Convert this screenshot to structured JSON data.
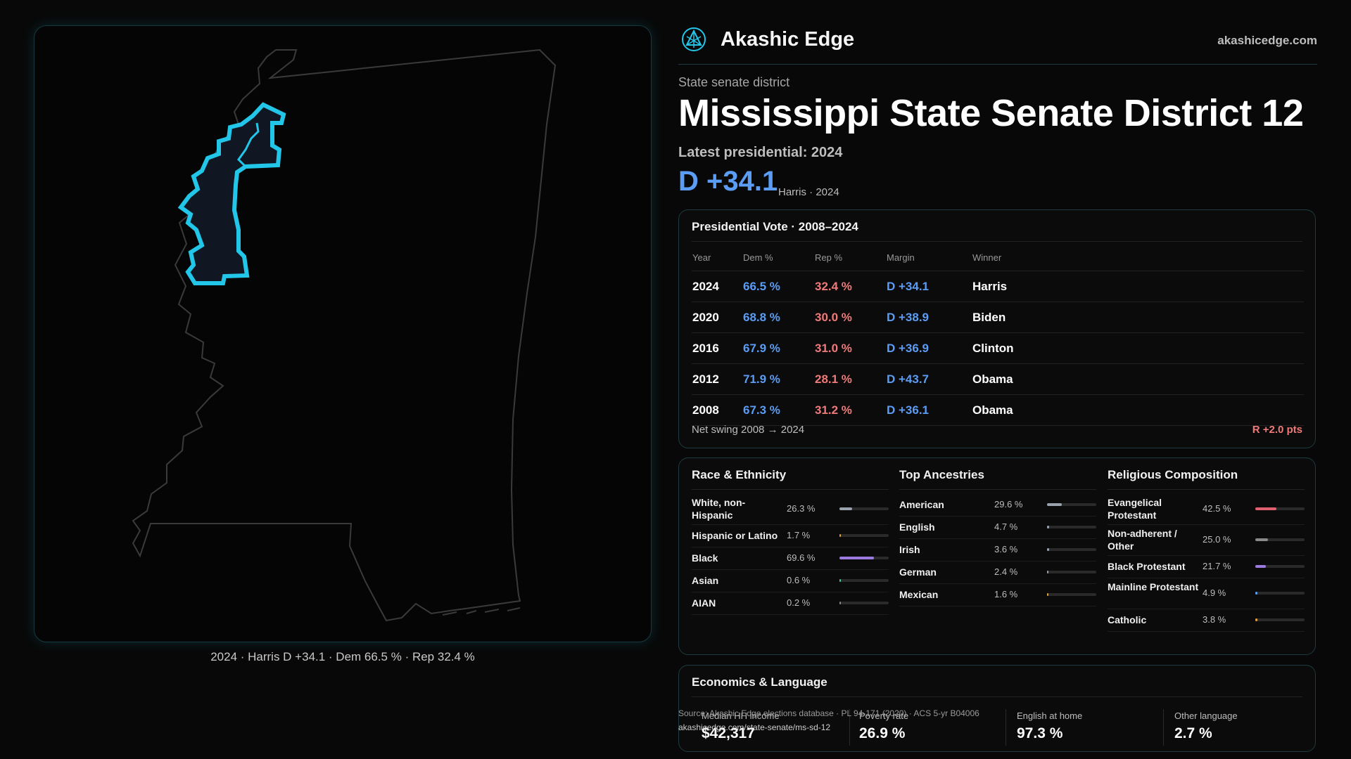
{
  "brand": {
    "name": "Akashic Edge",
    "url": "akashicedge.com",
    "logo_icon": "akashic-edge-logo-icon"
  },
  "header": {
    "kicker": "State senate district",
    "title": "Mississippi State Senate District 12",
    "latest": "Latest presidential: 2024",
    "margin": "D +34.1",
    "margin_sub": "Harris · 2024"
  },
  "map": {
    "caption": "2024 · Harris D +34.1 · Dem 66.5 % · Rep 32.4 %",
    "district_color": "#22c6e8",
    "state_outline_color": "#3a3a3a"
  },
  "presidential": {
    "title": "Presidential Vote · 2008–2024",
    "columns": [
      "Year",
      "Dem %",
      "Rep %",
      "Margin",
      "Winner"
    ],
    "rows": [
      {
        "year": "2024",
        "dem": "66.5 %",
        "rep": "32.4 %",
        "margin": "D +34.1",
        "winner": "Harris"
      },
      {
        "year": "2020",
        "dem": "68.8 %",
        "rep": "30.0 %",
        "margin": "D +38.9",
        "winner": "Biden"
      },
      {
        "year": "2016",
        "dem": "67.9 %",
        "rep": "31.0 %",
        "margin": "D +36.9",
        "winner": "Clinton"
      },
      {
        "year": "2012",
        "dem": "71.9 %",
        "rep": "28.1 %",
        "margin": "D +43.7",
        "winner": "Obama"
      },
      {
        "year": "2008",
        "dem": "67.3 %",
        "rep": "31.2 %",
        "margin": "D +36.1",
        "winner": "Obama"
      }
    ],
    "swing_label": "Net swing 2008 → 2024",
    "swing_value": "R +2.0 pts"
  },
  "race": {
    "title": "Race & Ethnicity",
    "items": [
      {
        "label": "White, non-Hispanic",
        "value": "26.3 %",
        "pct": 26.3,
        "color": "#9aa3ad"
      },
      {
        "label": "Hispanic or Latino",
        "value": "1.7 %",
        "pct": 1.7,
        "color": "#e0a040"
      },
      {
        "label": "Black",
        "value": "69.6 %",
        "pct": 69.6,
        "color": "#9b7be0"
      },
      {
        "label": "Asian",
        "value": "0.6 %",
        "pct": 0.6,
        "color": "#3fc9a0"
      },
      {
        "label": "AIAN",
        "value": "0.2 %",
        "pct": 0.2,
        "color": "#888888"
      }
    ]
  },
  "ancestry": {
    "title": "Top Ancestries",
    "items": [
      {
        "label": "American",
        "value": "29.6 %",
        "pct": 29.6,
        "color": "#9aa3ad"
      },
      {
        "label": "English",
        "value": "4.7 %",
        "pct": 4.7,
        "color": "#9aa3ad"
      },
      {
        "label": "Irish",
        "value": "3.6 %",
        "pct": 3.6,
        "color": "#9aa3ad"
      },
      {
        "label": "German",
        "value": "2.4 %",
        "pct": 2.4,
        "color": "#9aa3ad"
      },
      {
        "label": "Mexican",
        "value": "1.6 %",
        "pct": 1.6,
        "color": "#e0a040"
      }
    ]
  },
  "religion": {
    "title": "Religious Composition",
    "items": [
      {
        "label": "Evangelical Protestant",
        "value": "42.5 %",
        "pct": 42.5,
        "color": "#e06070"
      },
      {
        "label": "Non-adherent / Other",
        "value": "25.0 %",
        "pct": 25.0,
        "color": "#8a8a8a"
      },
      {
        "label": "Black Protestant",
        "value": "21.7 %",
        "pct": 21.7,
        "color": "#9b7be0"
      },
      {
        "label": "Mainline Protestant",
        "value": "4.9 %",
        "pct": 4.9,
        "color": "#5b9cf4"
      },
      {
        "label": "Catholic",
        "value": "3.8 %",
        "pct": 3.8,
        "color": "#e0a040"
      }
    ]
  },
  "economics": {
    "title": "Economics & Language",
    "stats": [
      {
        "label": "Median HH income",
        "value": "$42,317"
      },
      {
        "label": "Poverty rate",
        "value": "26.9 %"
      },
      {
        "label": "English at home",
        "value": "97.3 %"
      },
      {
        "label": "Other language",
        "value": "2.7 %"
      }
    ]
  },
  "source": {
    "line1": "Source: Akashic Edge elections database · PL 94-171 (2020) · ACS 5-yr B04006",
    "line2": "akashicedge.com/state-senate/ms-sd-12"
  }
}
